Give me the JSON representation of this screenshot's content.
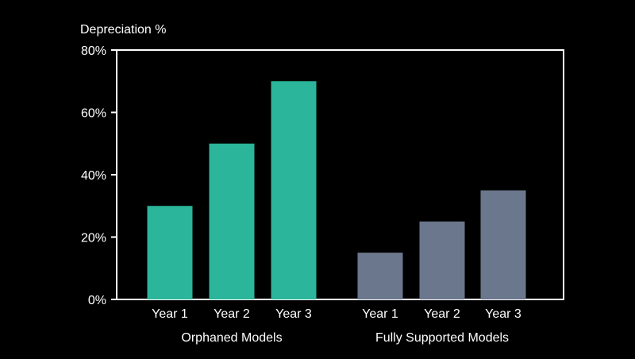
{
  "chart_data": {
    "type": "bar",
    "ylabel": "Depreciation %",
    "ylim": [
      0,
      80
    ],
    "yticks": [
      0,
      20,
      40,
      60,
      80
    ],
    "ytick_labels": [
      "0%",
      "20%",
      "40%",
      "60%",
      "80%"
    ],
    "grid": false,
    "groups": [
      {
        "name": "Orphaned Models",
        "color": "#2bb59a",
        "categories": [
          "Year 1",
          "Year 2",
          "Year 3"
        ],
        "values": [
          30,
          50,
          70
        ]
      },
      {
        "name": "Fully Supported Models",
        "color": "#6b778c",
        "categories": [
          "Year 1",
          "Year 2",
          "Year 3"
        ],
        "values": [
          15,
          25,
          35
        ]
      }
    ]
  }
}
